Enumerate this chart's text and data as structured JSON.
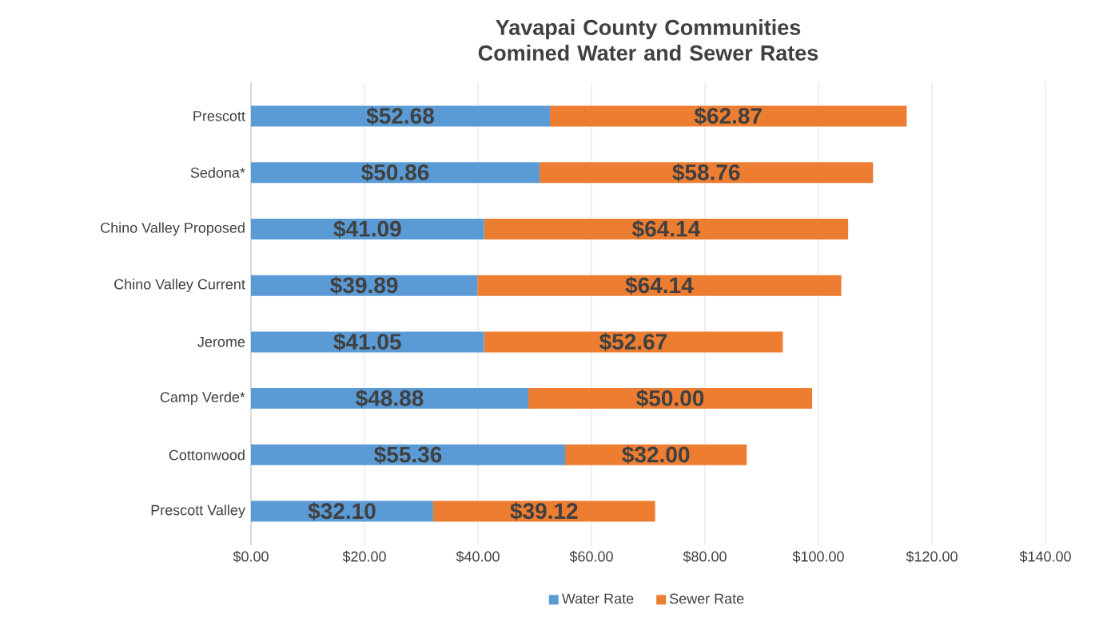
{
  "chart_data": {
    "type": "bar",
    "orientation": "horizontal",
    "stacked": true,
    "title": "Yavapai County Communities Comined Water and Sewer Rates",
    "categories": [
      "Prescott",
      "Sedona*",
      "Chino Valley Proposed",
      "Chino Valley Current",
      "Jerome",
      "Camp Verde*",
      "Cottonwood",
      "Prescott Valley"
    ],
    "series": [
      {
        "name": "Water Rate",
        "color": "#5b9bd5",
        "values": [
          52.68,
          50.86,
          41.09,
          39.89,
          41.05,
          48.88,
          55.36,
          32.1
        ],
        "value_labels": [
          "$52.68",
          "$50.86",
          "$41.09",
          "$39.89",
          "$41.05",
          "$48.88",
          "$55.36",
          "$32.10"
        ]
      },
      {
        "name": "Sewer Rate",
        "color": "#ed7d31",
        "values": [
          62.87,
          58.76,
          64.14,
          64.14,
          52.67,
          50.0,
          32.0,
          39.12
        ],
        "value_labels": [
          "$62.87",
          "$58.76",
          "$64.14",
          "$64.14",
          "$52.67",
          "$50.00",
          "$32.00",
          "$39.12"
        ]
      }
    ],
    "xlim": [
      0,
      140
    ],
    "xticks": [
      {
        "value": 0,
        "label": "$0.00"
      },
      {
        "value": 20,
        "label": "$20.00"
      },
      {
        "value": 40,
        "label": "$40.00"
      },
      {
        "value": 60,
        "label": "$60.00"
      },
      {
        "value": 80,
        "label": "$80.00"
      },
      {
        "value": 100,
        "label": "$100.00"
      },
      {
        "value": 120,
        "label": "$120.00"
      },
      {
        "value": 140,
        "label": "$140.00"
      }
    ],
    "grid": "x",
    "legend": "bottom"
  }
}
